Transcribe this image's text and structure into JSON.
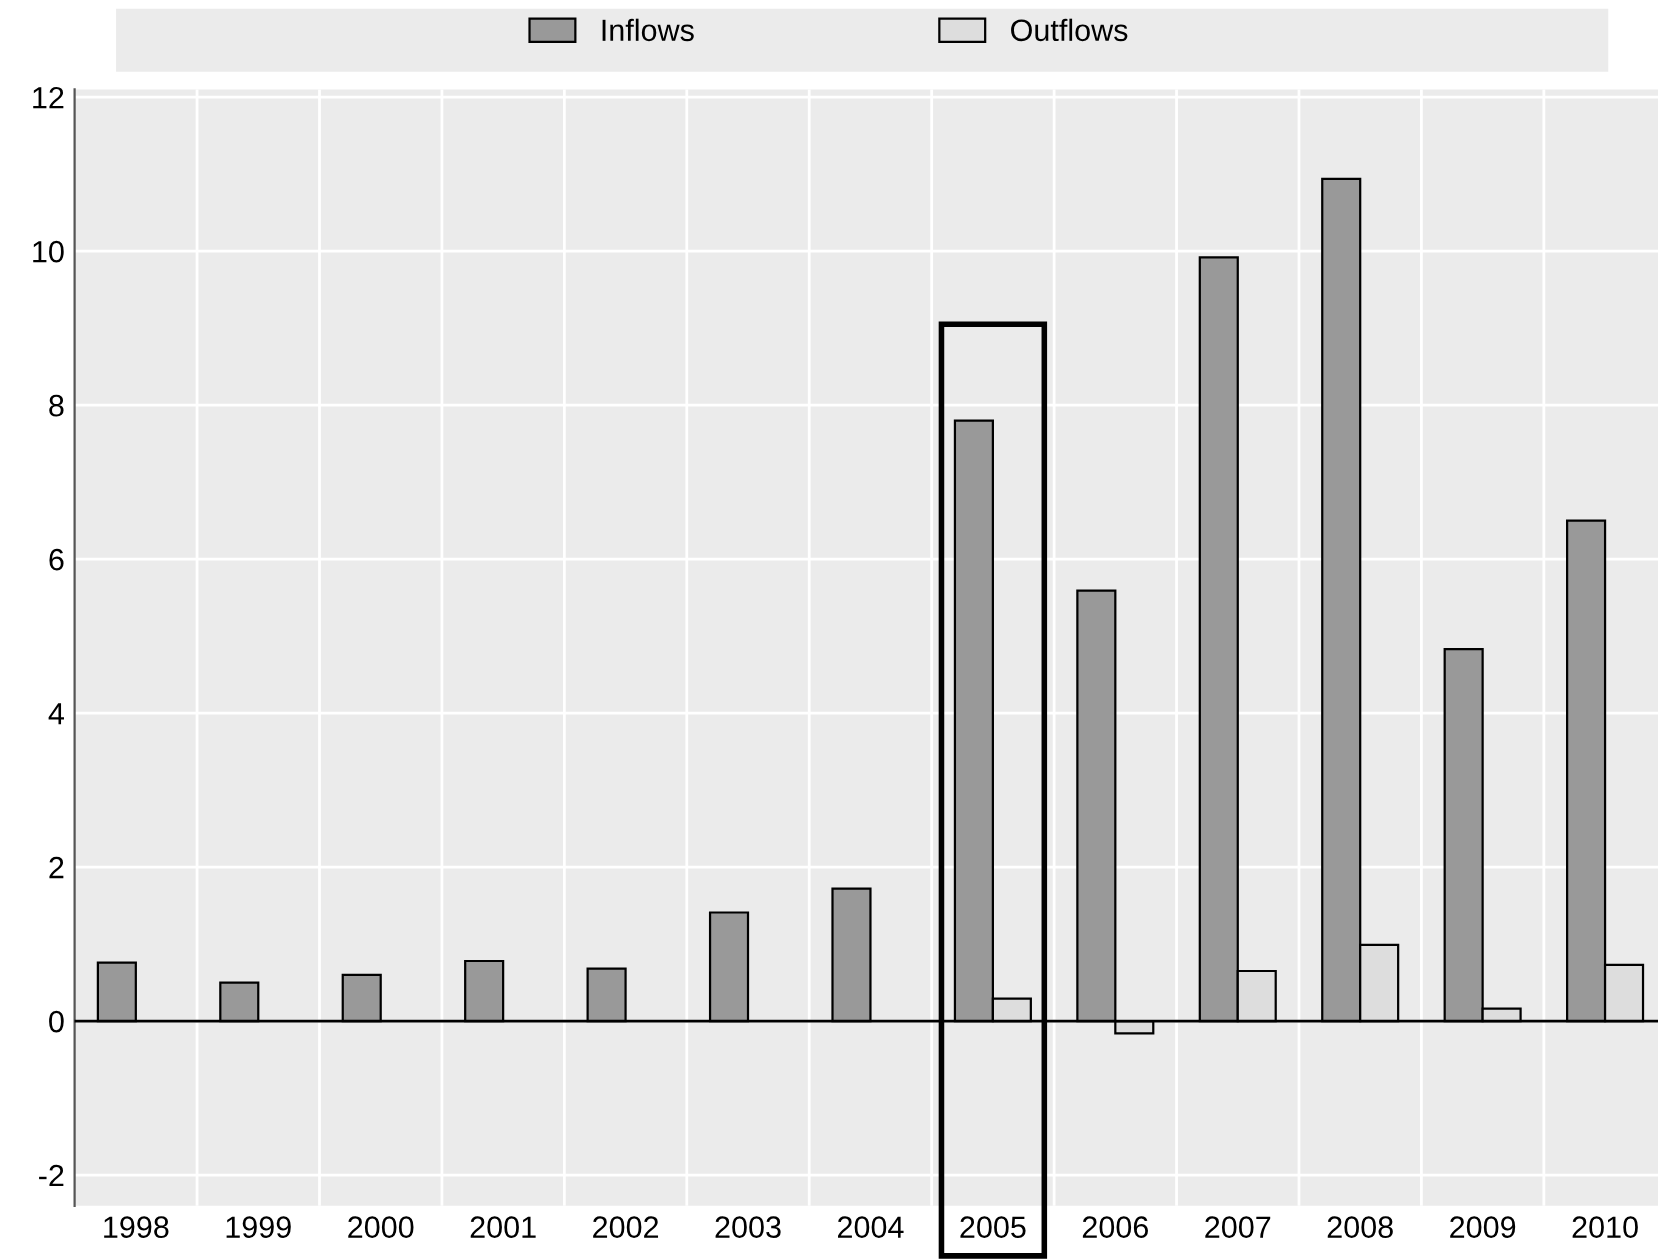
{
  "chart_data": {
    "type": "bar",
    "categories": [
      "1998",
      "1999",
      "2000",
      "2001",
      "2002",
      "2003",
      "2004",
      "2005",
      "2006",
      "2007",
      "2008",
      "2009",
      "2010"
    ],
    "series": [
      {
        "name": "Inflows",
        "color": "#999999",
        "values": [
          0.76,
          0.5,
          0.6,
          0.78,
          0.68,
          1.41,
          1.72,
          7.8,
          5.59,
          9.92,
          10.94,
          4.83,
          6.5
        ]
      },
      {
        "name": "Outflows",
        "color": "#dddddd",
        "values": [
          null,
          null,
          null,
          null,
          null,
          null,
          null,
          0.29,
          -0.16,
          0.65,
          0.99,
          0.16,
          0.73
        ]
      }
    ],
    "ylim": [
      -2.4,
      12.1
    ],
    "yticks": [
      -2,
      0,
      2,
      4,
      6,
      8,
      10,
      12
    ],
    "grid": true,
    "legend": "top"
  }
}
